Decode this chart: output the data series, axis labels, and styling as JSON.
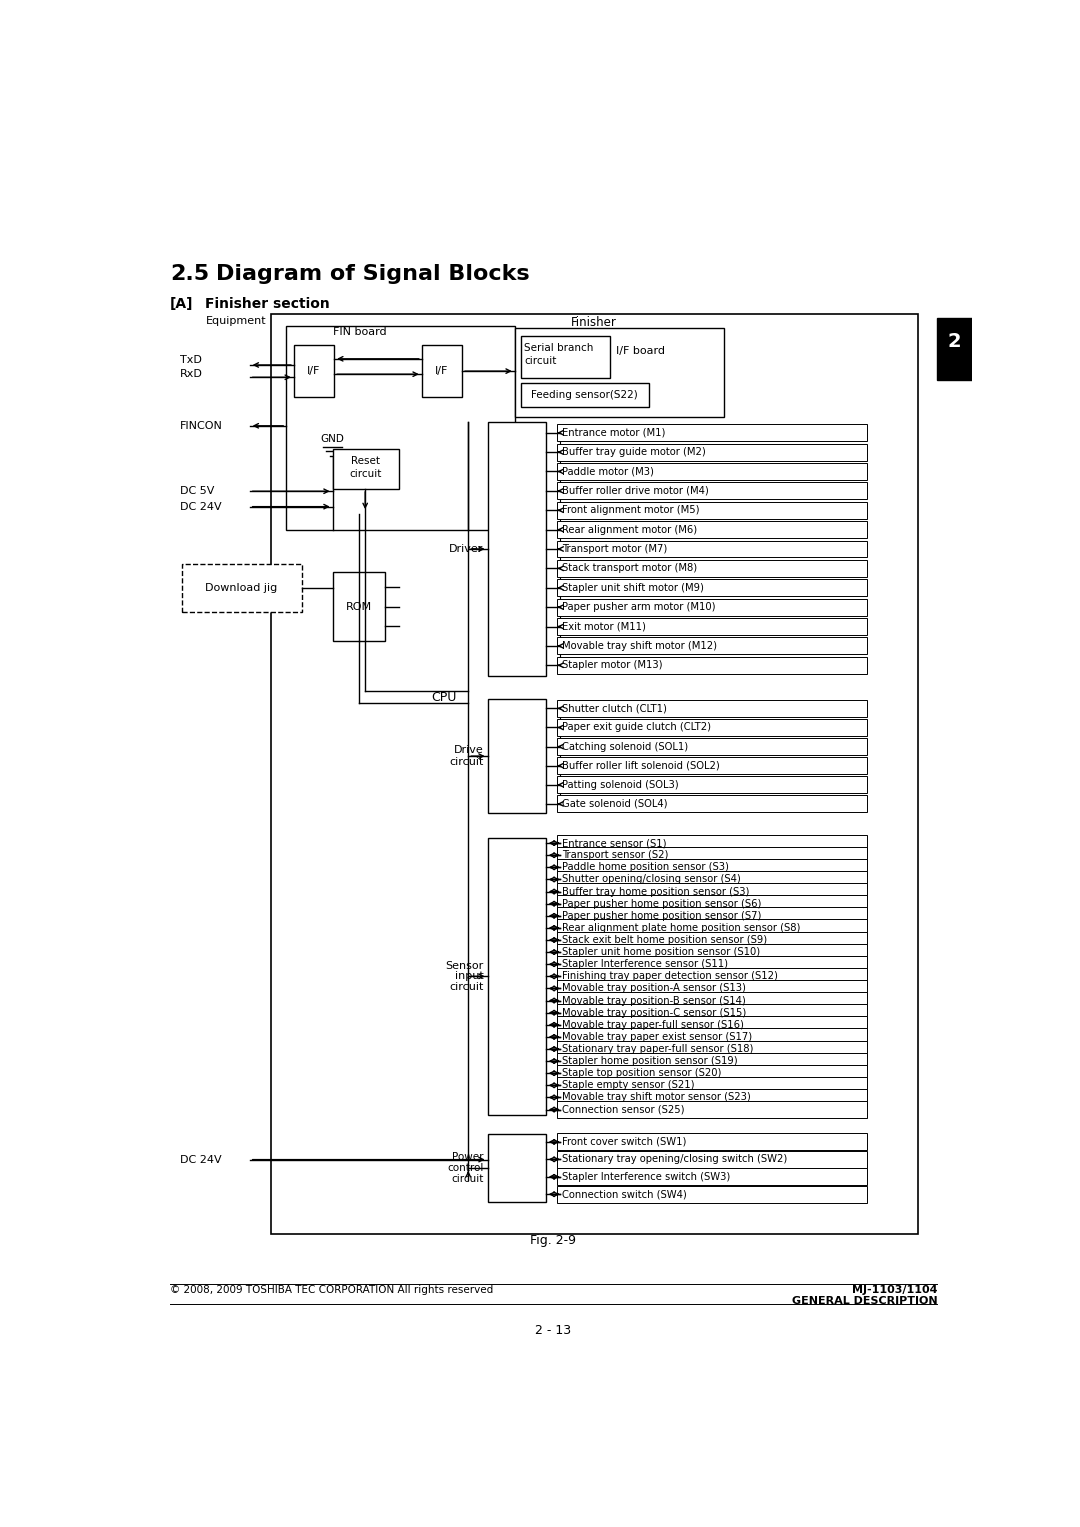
{
  "title": "2.5    Diagram of Signal Blocks",
  "subtitle": "[A]   Finisher section",
  "fig_label": "Fig. 2-9",
  "page_number": "2 - 13",
  "copyright": "© 2008, 2009 TOSHIBA TEC CORPORATION All rights reserved",
  "model": "MJ-1103/1104",
  "description": "GENERAL DESCRIPTION",
  "section_tab": "2",
  "background": "#ffffff",
  "driver_items": [
    "Entrance motor (M1)",
    "Buffer tray guide motor (M2)",
    "Paddle motor (M3)",
    "Buffer roller drive motor (M4)",
    "Front alignment motor (M5)",
    "Rear alignment motor (M6)",
    "Transport motor (M7)",
    "Stack transport motor (M8)",
    "Stapler unit shift motor (M9)",
    "Paper pusher arm motor (M10)",
    "Exit motor (M11)",
    "Movable tray shift motor (M12)",
    "Stapler motor (M13)"
  ],
  "drive_items": [
    "Shutter clutch (CLT1)",
    "Paper exit guide clutch (CLT2)",
    "Catching solenoid (SOL1)",
    "Buffer roller lift solenoid (SOL2)",
    "Patting solenoid (SOL3)",
    "Gate solenoid (SOL4)"
  ],
  "sensor_items": [
    "Entrance sensor (S1)",
    "Transport sensor (S2)",
    "Paddle home position sensor (S3)",
    "Shutter opening/closing sensor (S4)",
    "Buffer tray home position sensor (S3)",
    "Paper pusher home position sensor (S6)",
    "Paper pusher home position sensor (S7)",
    "Rear alignment plate home position sensor (S8)",
    "Stack exit belt home position sensor (S9)",
    "Stapler unit home position sensor (S10)",
    "Stapler Interference sensor (S11)",
    "Finishing tray paper detection sensor (S12)",
    "Movable tray position-A sensor (S13)",
    "Movable tray position-B sensor (S14)",
    "Movable tray position-C sensor (S15)",
    "Movable tray paper-full sensor (S16)",
    "Movable tray paper exist sensor (S17)",
    "Stationary tray paper-full sensor (S18)",
    "Stapler home position sensor (S19)",
    "Staple top position sensor (S20)",
    "Staple empty sensor (S21)",
    "Movable tray shift motor sensor (S23)",
    "Connection sensor (S25)"
  ],
  "switch_items": [
    "Front cover switch (SW1)",
    "Stationary tray opening/closing switch (SW2)",
    "Stapler Interference switch (SW3)",
    "Connection switch (SW4)"
  ]
}
